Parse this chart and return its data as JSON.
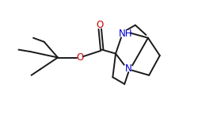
{
  "background": "#ffffff",
  "bond_color": "#1a1a1a",
  "n_color": "#0000cc",
  "o_color": "#cc0000",
  "line_width": 1.4,
  "font_size": 8.5,
  "nh_label": "NH",
  "n_label": "N",
  "o_label": "O",
  "xlim": [
    0,
    10
  ],
  "ylim": [
    0,
    6
  ]
}
